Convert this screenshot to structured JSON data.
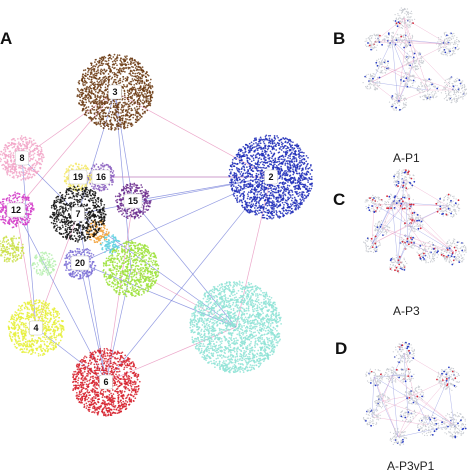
{
  "panels": {
    "a": {
      "letter": "A"
    },
    "b": {
      "letter": "B",
      "caption": "A-P1"
    },
    "c": {
      "letter": "C",
      "caption": "A-P3"
    },
    "d": {
      "letter": "D",
      "caption": "A-P3vP1"
    }
  },
  "clusters": [
    {
      "id": "3",
      "label": "3",
      "color": "#6b3a12",
      "label_visible": true
    },
    {
      "id": "2",
      "label": "2",
      "color": "#1f2db8",
      "label_visible": true
    },
    {
      "id": "8",
      "label": "8",
      "color": "#f2a6c8",
      "label_visible": true
    },
    {
      "id": "19",
      "label": "19",
      "color": "#f5e96a",
      "label_visible": true
    },
    {
      "id": "16",
      "label": "16",
      "color": "#8b5fbf",
      "label_visible": true
    },
    {
      "id": "7",
      "label": "7",
      "color": "#111111",
      "label_visible": true
    },
    {
      "id": "15",
      "label": "15",
      "color": "#6a2a8c",
      "label_visible": true
    },
    {
      "id": "12",
      "label": "12",
      "color": "#d23bc8",
      "label_visible": true
    },
    {
      "id": "20",
      "label": "20",
      "color": "#7b6fd6",
      "label_visible": true
    },
    {
      "id": "4",
      "label": "4",
      "color": "#e6f03a",
      "label_visible": true
    },
    {
      "id": "6",
      "label": "6",
      "color": "#d61f2a",
      "label_visible": true
    },
    {
      "id": "c-teal",
      "label": "",
      "color": "#8fe3d6",
      "label_visible": false
    },
    {
      "id": "c-lime",
      "label": "",
      "color": "#9ce23a",
      "label_visible": false
    },
    {
      "id": "c-olive",
      "label": "",
      "color": "#cbe04a",
      "label_visible": false
    },
    {
      "id": "c-mint",
      "label": "",
      "color": "#b8f0b0",
      "label_visible": false
    },
    {
      "id": "c-orange",
      "label": "",
      "color": "#f2a23a",
      "label_visible": false
    },
    {
      "id": "c-cyan",
      "label": "",
      "color": "#5fd0e0",
      "label_visible": false
    }
  ],
  "colors": {
    "edge_blue": "#6f79d8",
    "edge_pink": "#e58ab8",
    "inset_gray": "#c9ccd2",
    "inset_red": "#d6283a",
    "inset_blue": "#2b3fc4"
  }
}
